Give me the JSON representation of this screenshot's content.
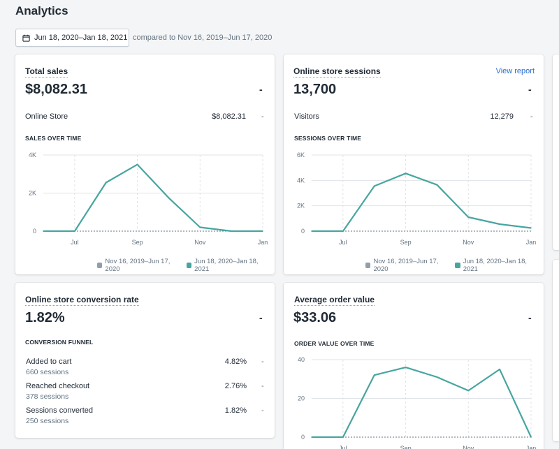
{
  "page": {
    "title": "Analytics"
  },
  "date_range": {
    "label": "Jun 18, 2020–Jan 18, 2021",
    "compare_text": "compared to Nov 16, 2019–Jun 17, 2020",
    "icon": "calendar-icon"
  },
  "colors": {
    "accent": "#47a59f",
    "previous": "#919eab",
    "link": "#2c6ecb"
  },
  "total_sales": {
    "title": "Total sales",
    "value": "$8,082.31",
    "dash": "-",
    "rows": [
      {
        "label": "Online Store",
        "value": "$8,082.31",
        "dash": "-"
      }
    ],
    "section": "SALES OVER TIME",
    "legend": [
      "Nov 16, 2019–Jun 17, 2020",
      "Jun 18, 2020–Jan 18, 2021"
    ]
  },
  "sessions": {
    "title": "Online store sessions",
    "view_report": "View report",
    "value": "13,700",
    "dash": "-",
    "rows": [
      {
        "label": "Visitors",
        "value": "12,279",
        "dash": "-"
      }
    ],
    "section": "SESSIONS OVER TIME",
    "legend": [
      "Nov 16, 2019–Jun 17, 2020",
      "Jun 18, 2020–Jan 18, 2021"
    ]
  },
  "conversion": {
    "title": "Online store conversion rate",
    "value": "1.82%",
    "dash": "-",
    "section": "CONVERSION FUNNEL",
    "rows": [
      {
        "label": "Added to cart",
        "sub": "660 sessions",
        "value": "4.82%",
        "dash": "-"
      },
      {
        "label": "Reached checkout",
        "sub": "378 sessions",
        "value": "2.76%",
        "dash": "-"
      },
      {
        "label": "Sessions converted",
        "sub": "250 sessions",
        "value": "1.82%",
        "dash": "-"
      }
    ]
  },
  "aov": {
    "title": "Average order value",
    "value": "$33.06",
    "dash": "-",
    "section": "ORDER VALUE OVER TIME"
  },
  "chart_data": [
    {
      "type": "line",
      "title": "SALES OVER TIME",
      "x_ticks": [
        "Jul",
        "Sep",
        "Nov",
        "Jan"
      ],
      "y_ticks": [
        "0",
        "2K",
        "4K"
      ],
      "ylim": [
        0,
        4000
      ],
      "series": [
        {
          "name": "Jun 18, 2020–Jan 18, 2021",
          "points": [
            [
              0,
              0
            ],
            [
              1,
              0
            ],
            [
              2,
              2550
            ],
            [
              3,
              3500
            ],
            [
              4,
              1750
            ],
            [
              5,
              200
            ],
            [
              6,
              0
            ],
            [
              7,
              0
            ]
          ]
        },
        {
          "name": "Nov 16, 2019–Jun 17, 2020",
          "points": [
            [
              0,
              0
            ],
            [
              7,
              0
            ]
          ]
        }
      ],
      "legend": "bottom-right",
      "grid": true
    },
    {
      "type": "line",
      "title": "SESSIONS OVER TIME",
      "x_ticks": [
        "Jul",
        "Sep",
        "Nov",
        "Jan"
      ],
      "y_ticks": [
        "0",
        "2K",
        "4K",
        "6K"
      ],
      "ylim": [
        0,
        6000
      ],
      "series": [
        {
          "name": "Jun 18, 2020–Jan 18, 2021",
          "points": [
            [
              0,
              0
            ],
            [
              1,
              0
            ],
            [
              2,
              3550
            ],
            [
              3,
              4550
            ],
            [
              4,
              3650
            ],
            [
              5,
              1100
            ],
            [
              6,
              550
            ],
            [
              7,
              250
            ]
          ]
        },
        {
          "name": "Nov 16, 2019–Jun 17, 2020",
          "points": [
            [
              0,
              0
            ],
            [
              7,
              0
            ]
          ]
        }
      ],
      "legend": "bottom-right",
      "grid": true
    },
    {
      "type": "line",
      "title": "ORDER VALUE OVER TIME",
      "x_ticks": [
        "Jul",
        "Sep",
        "Nov",
        "Jan"
      ],
      "y_ticks": [
        "0",
        "20",
        "40"
      ],
      "ylim": [
        0,
        40
      ],
      "series": [
        {
          "name": "Jun 18, 2020–Jan 18, 2021",
          "points": [
            [
              0,
              0
            ],
            [
              1,
              0
            ],
            [
              2,
              32
            ],
            [
              3,
              36
            ],
            [
              4,
              31
            ],
            [
              5,
              24
            ],
            [
              6,
              35
            ],
            [
              7,
              0
            ]
          ]
        },
        {
          "name": "Nov 16, 2019–Jun 17, 2020",
          "points": [
            [
              0,
              0
            ],
            [
              7,
              0
            ]
          ]
        }
      ],
      "grid": true
    }
  ]
}
